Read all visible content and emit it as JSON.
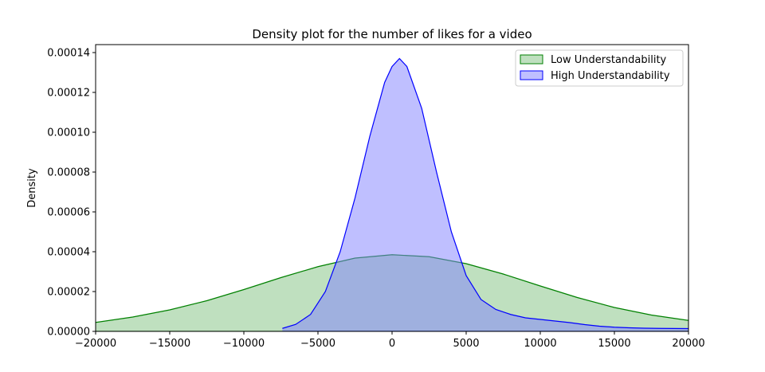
{
  "chart_data": {
    "type": "area",
    "title": "Density plot for the number of likes for a video",
    "xlabel": "",
    "ylabel": "Density",
    "xlim": [
      -20000,
      20000
    ],
    "ylim": [
      0,
      0.000144
    ],
    "xticks": [
      -20000,
      -15000,
      -10000,
      -5000,
      0,
      5000,
      10000,
      15000,
      20000
    ],
    "xtick_labels": [
      "−20000",
      "−15000",
      "−10000",
      "−5000",
      "0",
      "5000",
      "10000",
      "15000",
      "20000"
    ],
    "yticks": [
      0,
      2e-05,
      4e-05,
      6e-05,
      8e-05,
      0.0001,
      0.00012,
      0.00014
    ],
    "ytick_labels": [
      "0.00000",
      "0.00002",
      "0.00004",
      "0.00006",
      "0.00008",
      "0.00010",
      "0.00012",
      "0.00014"
    ],
    "grid": false,
    "legend_position": "top-right",
    "series": [
      {
        "name": "Low Understandability",
        "line_color": "#008000",
        "fill_color": "#bfe0bf",
        "x": [
          -20000,
          -17500,
          -15000,
          -12500,
          -10000,
          -7500,
          -5000,
          -2500,
          0,
          2500,
          5000,
          7500,
          10000,
          12500,
          15000,
          17500,
          20000
        ],
        "y": [
          4.5e-06,
          7.2e-06,
          1.08e-05,
          1.54e-05,
          2.1e-05,
          2.7e-05,
          3.25e-05,
          3.68e-05,
          3.85e-05,
          3.75e-05,
          3.4e-05,
          2.88e-05,
          2.28e-05,
          1.7e-05,
          1.2e-05,
          8.2e-06,
          5.5e-06
        ]
      },
      {
        "name": "High Understandability",
        "line_color": "#0000ff",
        "fill_color": "#8080ff",
        "x": [
          -7400,
          -6500,
          -5500,
          -4500,
          -3500,
          -2500,
          -1500,
          -500,
          0,
          500,
          1000,
          2000,
          3000,
          4000,
          5000,
          6000,
          7000,
          8000,
          9000,
          10000,
          11000,
          12000,
          13000,
          14000,
          15000,
          16000,
          17000,
          18000,
          20000
        ],
        "y": [
          1.5e-06,
          3.5e-06,
          8.5e-06,
          2e-05,
          4e-05,
          6.7e-05,
          9.8e-05,
          0.000125,
          0.000133,
          0.000137,
          0.000133,
          0.000112,
          8e-05,
          5e-05,
          2.8e-05,
          1.6e-05,
          1.1e-05,
          8.5e-06,
          6.8e-06,
          6e-06,
          5.2e-06,
          4.4e-06,
          3.4e-06,
          2.6e-06,
          2.1e-06,
          1.8e-06,
          1.6e-06,
          1.5e-06,
          1.4e-06
        ]
      }
    ]
  }
}
